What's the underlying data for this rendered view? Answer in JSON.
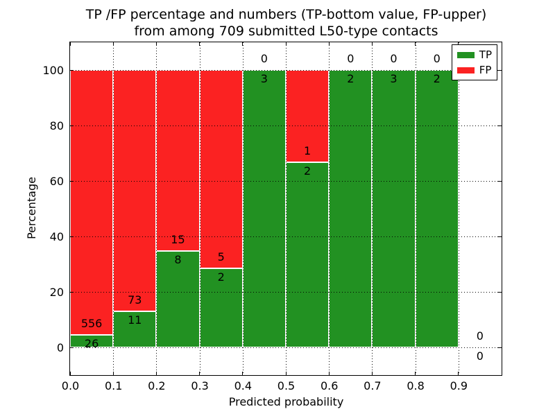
{
  "chart_data": {
    "type": "bar",
    "stacked": true,
    "title": "TP /FP percentage and numbers (TP-bottom value, FP-upper)\nfrom among 709 submitted L50-type contacts",
    "title_lines": [
      "TP /FP percentage and numbers (TP-bottom value, FP-upper)",
      "from among 709 submitted L50-type contacts"
    ],
    "xlabel": "Predicted probability",
    "ylabel": "Percentage",
    "xlim": [
      0.0,
      1.0
    ],
    "ylim": [
      -10,
      110
    ],
    "x_tick_labels": [
      "0.0",
      "0.1",
      "0.2",
      "0.3",
      "0.4",
      "0.5",
      "0.6",
      "0.7",
      "0.8",
      "0.9"
    ],
    "y_ticks": [
      0,
      20,
      40,
      60,
      80,
      100
    ],
    "grid": "dotted",
    "legend_position": "upper right",
    "series": [
      {
        "name": "TP",
        "color": "#229122"
      },
      {
        "name": "FP",
        "color": "#fb2222"
      }
    ],
    "bins": [
      {
        "range": [
          0.0,
          0.1
        ],
        "tp": 26,
        "fp": 556
      },
      {
        "range": [
          0.1,
          0.2
        ],
        "tp": 11,
        "fp": 73
      },
      {
        "range": [
          0.2,
          0.3
        ],
        "tp": 8,
        "fp": 15
      },
      {
        "range": [
          0.3,
          0.4
        ],
        "tp": 2,
        "fp": 5
      },
      {
        "range": [
          0.4,
          0.5
        ],
        "tp": 3,
        "fp": 0
      },
      {
        "range": [
          0.5,
          0.6
        ],
        "tp": 2,
        "fp": 1
      },
      {
        "range": [
          0.6,
          0.7
        ],
        "tp": 2,
        "fp": 0
      },
      {
        "range": [
          0.7,
          0.8
        ],
        "tp": 3,
        "fp": 0
      },
      {
        "range": [
          0.8,
          0.9
        ],
        "tp": 2,
        "fp": 0
      },
      {
        "range": [
          0.9,
          1.0
        ],
        "tp": 0,
        "fp": 0
      }
    ]
  }
}
